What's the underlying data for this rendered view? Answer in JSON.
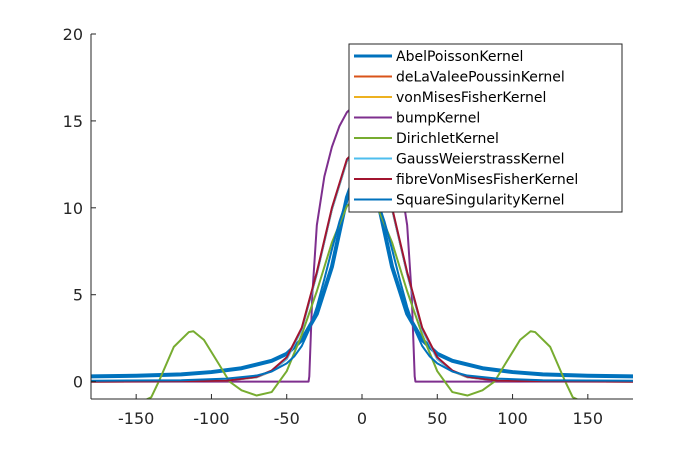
{
  "chart_data": {
    "type": "line",
    "title": "",
    "xlabel": "",
    "ylabel": "",
    "xlim": [
      -180,
      180
    ],
    "ylim": [
      -1,
      20
    ],
    "xticks": [
      -150,
      -100,
      -50,
      0,
      50,
      100,
      150
    ],
    "yticks": [
      0,
      5,
      10,
      15,
      20
    ],
    "xtick_labels": [
      "-150",
      "-100",
      "-50",
      "0",
      "50",
      "100",
      "150"
    ],
    "ytick_labels": [
      "0",
      "5",
      "10",
      "15",
      "20"
    ],
    "grid": false,
    "legend_position": "top-right",
    "series": [
      {
        "name": "AbelPoissonKernel",
        "color": "#0072BD",
        "width": 4,
        "x": [
          -180,
          -150,
          -120,
          -100,
          -80,
          -60,
          -50,
          -40,
          -30,
          -20,
          -10,
          0,
          10,
          20,
          30,
          40,
          50,
          60,
          80,
          100,
          120,
          150,
          180
        ],
        "y": [
          0.3,
          0.34,
          0.42,
          0.55,
          0.77,
          1.2,
          1.6,
          2.4,
          3.9,
          6.6,
          10.6,
          13.0,
          10.6,
          6.6,
          3.9,
          2.4,
          1.6,
          1.2,
          0.77,
          0.55,
          0.42,
          0.34,
          0.3
        ]
      },
      {
        "name": "deLaValeePoussinKernel",
        "color": "#D95319",
        "width": 2,
        "x": [
          -180,
          -120,
          -90,
          -70,
          -60,
          -50,
          -40,
          -30,
          -20,
          -10,
          0,
          10,
          20,
          30,
          40,
          50,
          60,
          70,
          90,
          120,
          180
        ],
        "y": [
          0,
          0.02,
          0.05,
          0.25,
          0.6,
          1.3,
          3.0,
          6.2,
          9.9,
          12.7,
          13.6,
          12.7,
          9.9,
          6.2,
          3.0,
          1.3,
          0.6,
          0.25,
          0.05,
          0.02,
          0
        ]
      },
      {
        "name": "vonMisesFisherKernel",
        "color": "#EDB120",
        "width": 2,
        "x": [
          -180,
          -120,
          -90,
          -70,
          -60,
          -50,
          -40,
          -30,
          -20,
          -10,
          0,
          10,
          20,
          30,
          40,
          50,
          60,
          70,
          90,
          120,
          180
        ],
        "y": [
          0,
          0.02,
          0.05,
          0.27,
          0.62,
          1.35,
          3.05,
          6.25,
          9.9,
          12.7,
          13.6,
          12.7,
          9.9,
          6.25,
          3.05,
          1.35,
          0.62,
          0.27,
          0.05,
          0.02,
          0
        ]
      },
      {
        "name": "bumpKernel",
        "color": "#7E2F8E",
        "width": 2,
        "x": [
          -180,
          -35.5,
          -35,
          -33,
          -30,
          -25,
          -20,
          -15,
          -10,
          -5,
          0,
          5,
          10,
          15,
          20,
          25,
          30,
          33,
          35,
          35.5,
          180
        ],
        "y": [
          0,
          0,
          0.3,
          5,
          9,
          11.8,
          13.5,
          14.7,
          15.5,
          15.9,
          16.0,
          15.9,
          15.5,
          14.7,
          13.5,
          11.8,
          9,
          5,
          0.3,
          0,
          0
        ]
      },
      {
        "name": "DirichletKernel",
        "color": "#77AC30",
        "width": 2,
        "x": [
          -180,
          -150,
          -140,
          -135,
          -125,
          -115,
          -112,
          -105,
          -95,
          -88,
          -80,
          -70,
          -60,
          -50,
          -40,
          -30,
          -20,
          -10,
          0,
          10,
          20,
          30,
          40,
          50,
          60,
          70,
          80,
          88,
          95,
          105,
          112,
          115,
          125,
          135,
          140,
          150,
          180
        ],
        "y": [
          -1.5,
          -1.3,
          -0.9,
          0.0,
          2.0,
          2.85,
          2.9,
          2.4,
          1.0,
          0.0,
          -0.5,
          -0.8,
          -0.6,
          0.6,
          2.7,
          5.2,
          8.0,
          10.1,
          10.8,
          10.1,
          8.0,
          5.2,
          2.7,
          0.6,
          -0.6,
          -0.8,
          -0.5,
          0.0,
          1.0,
          2.4,
          2.9,
          2.85,
          2.0,
          0.0,
          -0.9,
          -1.3,
          -1.5
        ]
      },
      {
        "name": "GaussWeierstrassKernel",
        "color": "#4DBEEE",
        "width": 2,
        "x": [
          -180,
          -120,
          -90,
          -70,
          -60,
          -50,
          -40,
          -30,
          -20,
          -10,
          0,
          10,
          20,
          30,
          40,
          50,
          60,
          70,
          90,
          120,
          180
        ],
        "y": [
          0,
          0.02,
          0.05,
          0.26,
          0.61,
          1.3,
          3.0,
          6.2,
          9.9,
          12.7,
          13.6,
          12.7,
          9.9,
          6.2,
          3.0,
          1.3,
          0.61,
          0.26,
          0.05,
          0.02,
          0
        ]
      },
      {
        "name": "fibreVonMisesFisherKernel",
        "color": "#A2142F",
        "width": 2,
        "x": [
          -180,
          -120,
          -90,
          -70,
          -60,
          -50,
          -40,
          -30,
          -20,
          -10,
          0,
          10,
          20,
          30,
          40,
          50,
          60,
          70,
          90,
          120,
          180
        ],
        "y": [
          0,
          0.02,
          0.05,
          0.28,
          0.64,
          1.4,
          3.1,
          6.3,
          10.0,
          12.8,
          13.7,
          12.8,
          10.0,
          6.3,
          3.1,
          1.4,
          0.64,
          0.28,
          0.05,
          0.02,
          0
        ]
      },
      {
        "name": "SquareSingularityKernel",
        "color": "#0072BD",
        "width": 2,
        "x": [
          -180,
          -120,
          -90,
          -70,
          -60,
          -50,
          -45,
          -40,
          -35,
          -30,
          -25,
          -20,
          -15,
          -10,
          -5,
          0,
          5,
          10,
          15,
          20,
          25,
          30,
          35,
          40,
          45,
          50,
          60,
          70,
          90,
          120,
          180
        ],
        "y": [
          0.05,
          0.08,
          0.17,
          0.35,
          0.58,
          1.05,
          1.45,
          2.05,
          3.0,
          4.3,
          5.9,
          7.6,
          9.2,
          10.5,
          11.3,
          11.6,
          11.3,
          10.5,
          9.2,
          7.6,
          5.9,
          4.3,
          3.0,
          2.05,
          1.45,
          1.05,
          0.58,
          0.35,
          0.17,
          0.08,
          0.05
        ]
      }
    ]
  }
}
